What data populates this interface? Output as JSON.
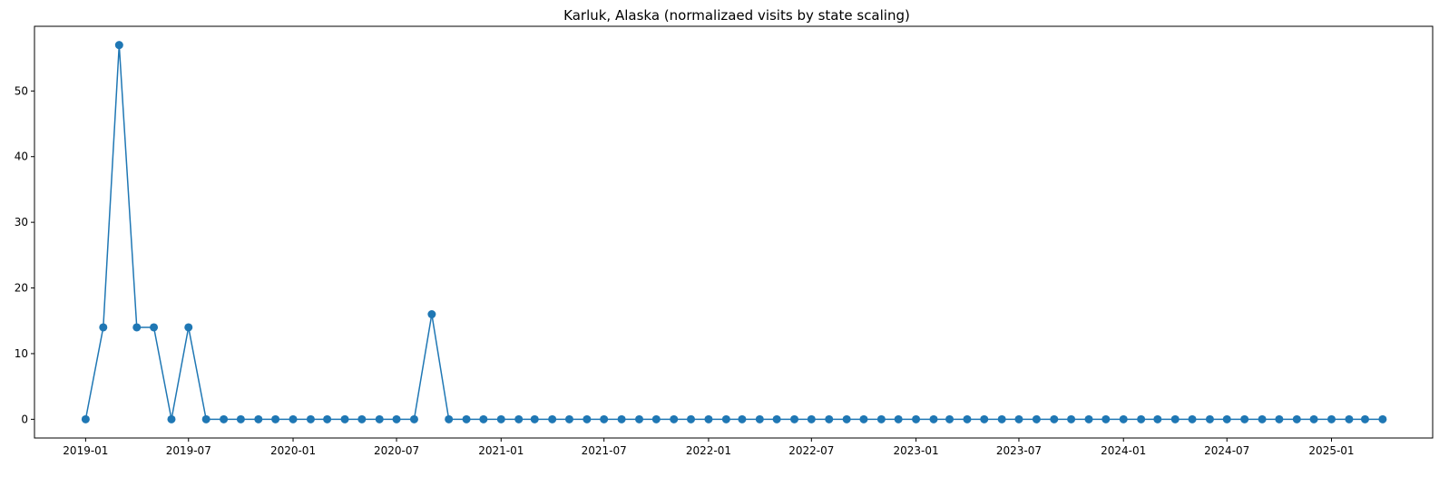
{
  "chart_data": {
    "type": "line",
    "title": "Karluk, Alaska (normalizaed visits by state scaling)",
    "xlabel": "",
    "ylabel": "",
    "x_tick_labels": [
      "2019-01",
      "2019-07",
      "2020-01",
      "2020-07",
      "2021-01",
      "2021-07",
      "2022-01",
      "2022-07",
      "2023-01",
      "2023-07",
      "2024-01",
      "2024-07",
      "2025-01"
    ],
    "y_ticks": [
      0,
      10,
      20,
      30,
      40,
      50
    ],
    "x_range": [
      "2018-10-03",
      "2025-06-28"
    ],
    "ylim": [
      -2.85,
      59.85
    ],
    "grid": false,
    "legend": "none",
    "color": "#1f77b4",
    "marker": "circle",
    "series": [
      {
        "start": "2019-01",
        "values": [
          0,
          14,
          57,
          14,
          14,
          0,
          14,
          0,
          0,
          0,
          0,
          0,
          0,
          0,
          0,
          0,
          0,
          0,
          0,
          0,
          16,
          0,
          0,
          0,
          0,
          0,
          0,
          0,
          0,
          0,
          0,
          0,
          0,
          0,
          0,
          0,
          0,
          0,
          0,
          0,
          0,
          0,
          0,
          0,
          0,
          0,
          0,
          0,
          0,
          0,
          0,
          0,
          0,
          0,
          0,
          0,
          0,
          0,
          0,
          0,
          0,
          0,
          0,
          0,
          0,
          0,
          0,
          0,
          0,
          0,
          0,
          0,
          0,
          0,
          0,
          0
        ]
      }
    ]
  }
}
